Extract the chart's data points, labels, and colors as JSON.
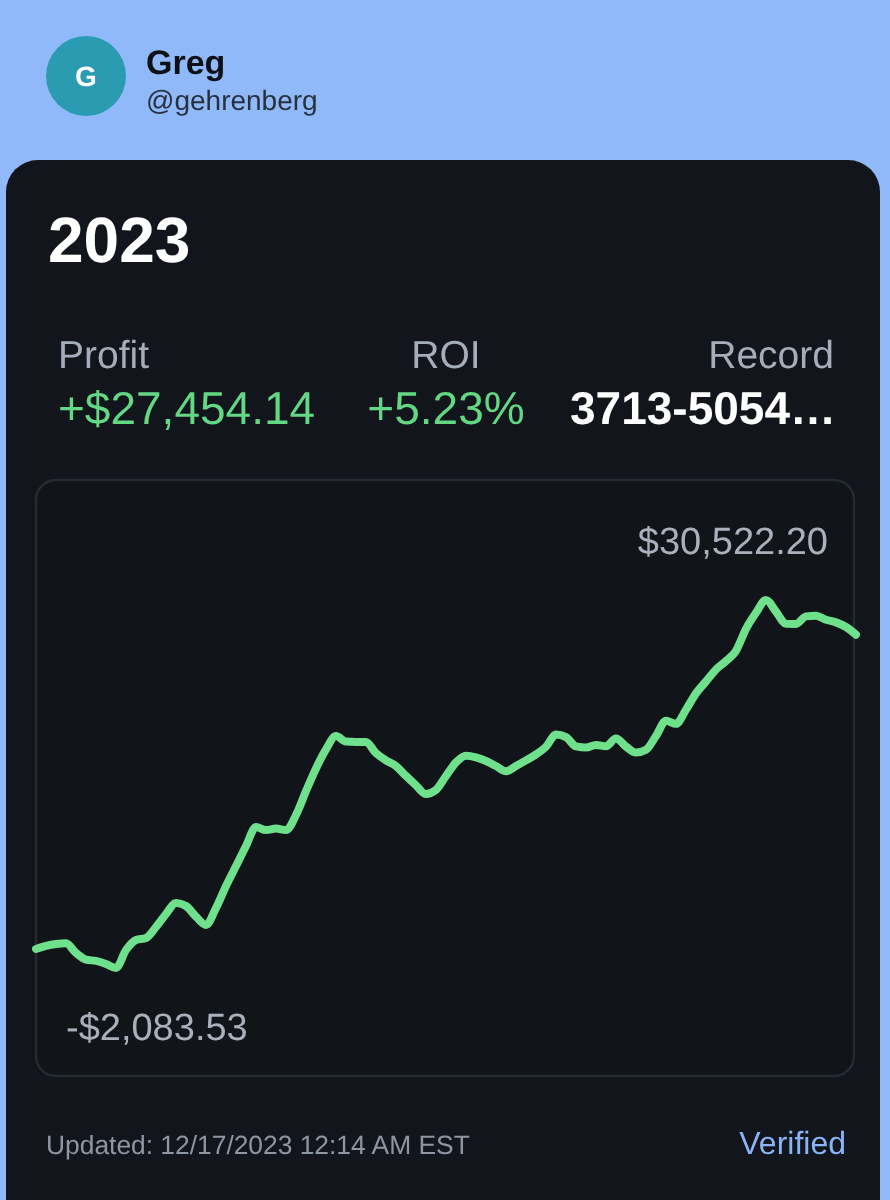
{
  "chart_data": {
    "type": "line",
    "title": "2023",
    "color": "#6fe08c",
    "categories": [
      null,
      null,
      null,
      null,
      null,
      null,
      null,
      null,
      null,
      null,
      null,
      null,
      null,
      null,
      null,
      null,
      null,
      null,
      null,
      null,
      null,
      null,
      null,
      null,
      null,
      null,
      null,
      null,
      null,
      null,
      null,
      null,
      null,
      null,
      null,
      null,
      null,
      null,
      null,
      null,
      null,
      null,
      null,
      null,
      null,
      null,
      null,
      null,
      null,
      null,
      null,
      null,
      null,
      null,
      null,
      null,
      null,
      null,
      null,
      null,
      null,
      null,
      null,
      null,
      null,
      null,
      null,
      null,
      null,
      null,
      null,
      null,
      null,
      null,
      null,
      null,
      null,
      null,
      null,
      null,
      null,
      null,
      null
    ],
    "values": [
      -400,
      -130,
      40,
      100,
      -750,
      -1340,
      -1460,
      -1730,
      -2083.53,
      -490,
      400,
      580,
      1550,
      2700,
      3680,
      3410,
      2470,
      1730,
      3230,
      5180,
      6950,
      8730,
      10410,
      10140,
      10270,
      10140,
      11470,
      13600,
      15600,
      17290,
      18470,
      17980,
      17940,
      17940,
      16950,
      16310,
      15810,
      14930,
      14100,
      13330,
      13690,
      14930,
      16130,
      16720,
      16580,
      16260,
      15810,
      15350,
      15810,
      16310,
      16840,
      17520,
      18600,
      18370,
      17550,
      17450,
      17680,
      17570,
      18260,
      17530,
      17000,
      17250,
      18470,
      19820,
      19550,
      20810,
      22250,
      23310,
      24370,
      25120,
      26020,
      27970,
      29390,
      30522.2,
      29490,
      28410,
      28400,
      29070,
      29120,
      28770,
      28540,
      28130,
      27450
    ],
    "value_labels": [
      null,
      null,
      null,
      null,
      null,
      null,
      null,
      null,
      "-$2,083.53",
      null,
      null,
      null,
      null,
      null,
      null,
      null,
      null,
      null,
      null,
      null,
      null,
      null,
      null,
      null,
      null,
      null,
      null,
      null,
      null,
      null,
      null,
      null,
      null,
      null,
      null,
      null,
      null,
      null,
      null,
      null,
      null,
      null,
      null,
      null,
      null,
      null,
      null,
      null,
      null,
      null,
      null,
      null,
      null,
      null,
      null,
      null,
      null,
      null,
      null,
      null,
      null,
      null,
      null,
      null,
      null,
      null,
      null,
      null,
      null,
      null,
      null,
      null,
      null,
      "$30,522.20",
      null,
      null,
      null,
      null,
      null,
      null,
      null,
      null,
      null
    ],
    "annotations": [
      "Greg",
      "@gehrenberg",
      "G",
      "Profit",
      "+$27,454.14",
      "ROI",
      "+5.23%",
      "Record",
      "3713-5054…",
      "Updated: 12/17/2023 12:14 AM EST",
      "Verified"
    ]
  }
}
